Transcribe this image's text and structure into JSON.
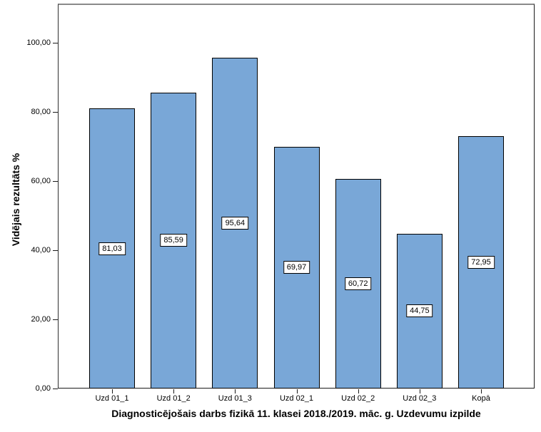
{
  "chart_data": {
    "type": "bar",
    "title": "Diagnosticējošais darbs fizikā 11. klasei 2018./2019. māc. g. Uzdevumu izpilde",
    "ylabel": "Vidējais rezultāts %",
    "xlabel": "",
    "categories": [
      "Uzd 01_1",
      "Uzd 01_2",
      "Uzd 01_3",
      "Uzd 02_1",
      "Uzd 02_2",
      "Uzd 02_3",
      "Kopā"
    ],
    "values": [
      81.03,
      85.59,
      95.64,
      69.97,
      60.72,
      44.75,
      72.95
    ],
    "value_labels": [
      "81,03",
      "85,59",
      "95,64",
      "69,97",
      "60,72",
      "44,75",
      "72,95"
    ],
    "ylim": [
      0,
      100
    ],
    "yticks": [
      0,
      20,
      40,
      60,
      80,
      100
    ],
    "ytick_labels": [
      "0,00",
      "20,00",
      "40,00",
      "60,00",
      "80,00",
      "100,00"
    ],
    "grid": false,
    "legend": "none",
    "bar_color": "#79a7d7",
    "bar_border_color": "#000000",
    "value_label_background": "#ffffff"
  }
}
